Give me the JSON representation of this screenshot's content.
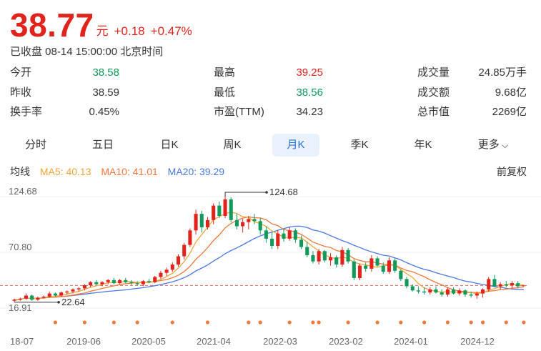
{
  "quote": {
    "price": "38.77",
    "unit": "元",
    "change": "+0.18",
    "change_pct": "+0.47%",
    "status": "已收盘 08-14 15:00:00 北京时间"
  },
  "stats": [
    {
      "label": "今开",
      "value": "38.58",
      "color": "green"
    },
    {
      "label": "最高",
      "value": "39.25",
      "color": "red"
    },
    {
      "label": "成交量",
      "value": "24.85万手",
      "color": "dark"
    },
    {
      "label": "昨收",
      "value": "38.59",
      "color": "dark"
    },
    {
      "label": "最低",
      "value": "38.56",
      "color": "green"
    },
    {
      "label": "成交额",
      "value": "9.68亿",
      "color": "dark"
    },
    {
      "label": "换手率",
      "value": "0.45%",
      "color": "dark"
    },
    {
      "label": "市盈(TTM)",
      "value": "34.23",
      "color": "dark"
    },
    {
      "label": "总市值",
      "value": "2269亿",
      "color": "dark"
    }
  ],
  "tabs": [
    "分时",
    "五日",
    "日K",
    "周K",
    "月K",
    "季K",
    "年K",
    "更多"
  ],
  "active_tab": "月K",
  "ma": {
    "title": "均线",
    "ma5": "MA5: 40.13",
    "ma10": "MA10: 41.01",
    "ma20": "MA20: 39.29",
    "ma5_color": "#f4a53a",
    "ma10_color": "#f0783c",
    "ma20_color": "#4a78e0",
    "adjust": "前复权"
  },
  "colors": {
    "up": "#e0241c",
    "down": "#119a5a"
  },
  "chart_data": {
    "type": "candlestick",
    "y_ticks": [
      "124.68",
      "70.80",
      "16.91"
    ],
    "x_ticks": [
      "18-07",
      "2019-06",
      "2020-05",
      "2021-04",
      "2022-03",
      "2023-02",
      "2024-01",
      "2024-12"
    ],
    "max_label": "124.68",
    "min_label": "22.64",
    "ylim": [
      16.91,
      124.68
    ],
    "current_price": 38.77,
    "candles": [
      [
        24,
        26,
        22.6,
        25
      ],
      [
        25,
        27,
        24,
        26
      ],
      [
        26,
        31,
        25,
        29
      ],
      [
        29,
        30,
        24,
        25
      ],
      [
        25,
        28,
        24,
        27
      ],
      [
        27,
        29,
        26,
        28
      ],
      [
        28,
        33,
        27,
        31
      ],
      [
        31,
        32,
        28,
        29
      ],
      [
        29,
        33,
        28,
        32
      ],
      [
        32,
        34,
        30,
        33
      ],
      [
        33,
        36,
        31,
        35
      ],
      [
        35,
        37,
        33,
        36
      ],
      [
        36,
        40,
        34,
        39
      ],
      [
        39,
        43,
        37,
        42
      ],
      [
        42,
        44,
        39,
        40
      ],
      [
        40,
        43,
        38,
        42
      ],
      [
        42,
        45,
        40,
        44
      ],
      [
        44,
        46,
        40,
        41
      ],
      [
        41,
        45,
        40,
        44
      ],
      [
        44,
        46,
        41,
        42
      ],
      [
        42,
        44,
        39,
        41
      ],
      [
        41,
        43,
        39,
        40
      ],
      [
        40,
        44,
        38,
        43
      ],
      [
        43,
        45,
        41,
        42
      ],
      [
        42,
        48,
        41,
        47
      ],
      [
        47,
        53,
        45,
        51
      ],
      [
        51,
        56,
        48,
        54
      ],
      [
        54,
        61,
        52,
        59
      ],
      [
        59,
        69,
        57,
        67
      ],
      [
        67,
        80,
        64,
        78
      ],
      [
        78,
        94,
        76,
        92
      ],
      [
        92,
        112,
        88,
        108
      ],
      [
        108,
        111,
        90,
        95
      ],
      [
        95,
        105,
        93,
        102
      ],
      [
        102,
        118,
        98,
        116
      ],
      [
        116,
        120,
        104,
        106
      ],
      [
        106,
        124.68,
        104,
        122
      ],
      [
        122,
        124,
        100,
        102
      ],
      [
        102,
        108,
        93,
        96
      ],
      [
        96,
        103,
        90,
        100
      ],
      [
        100,
        106,
        93,
        103
      ],
      [
        103,
        108,
        98,
        101
      ],
      [
        101,
        104,
        88,
        92
      ],
      [
        92,
        96,
        80,
        84
      ],
      [
        84,
        90,
        74,
        77
      ],
      [
        77,
        92,
        74,
        89
      ],
      [
        89,
        94,
        81,
        84
      ],
      [
        84,
        95,
        82,
        92
      ],
      [
        92,
        94,
        80,
        83
      ],
      [
        83,
        87,
        74,
        76
      ],
      [
        76,
        81,
        66,
        68
      ],
      [
        68,
        72,
        60,
        62
      ],
      [
        62,
        74,
        59,
        72
      ],
      [
        72,
        73,
        61,
        63
      ],
      [
        63,
        70,
        58,
        66
      ],
      [
        66,
        68,
        56,
        59
      ],
      [
        59,
        76,
        57,
        73
      ],
      [
        73,
        75,
        60,
        62
      ],
      [
        62,
        64,
        44,
        46
      ],
      [
        46,
        60,
        44,
        58
      ],
      [
        58,
        61,
        52,
        55
      ],
      [
        55,
        68,
        52,
        65
      ],
      [
        65,
        67,
        57,
        58
      ],
      [
        58,
        61,
        50,
        52
      ],
      [
        52,
        66,
        50,
        63
      ],
      [
        63,
        65,
        51,
        53
      ],
      [
        53,
        54,
        43,
        45
      ],
      [
        45,
        47,
        36,
        38
      ],
      [
        38,
        40,
        33,
        34
      ],
      [
        34,
        38,
        31,
        33
      ],
      [
        33,
        37,
        30,
        32
      ],
      [
        32,
        37,
        30,
        35
      ],
      [
        35,
        38,
        31,
        32
      ],
      [
        32,
        35,
        28,
        30
      ],
      [
        30,
        37,
        28,
        35
      ],
      [
        35,
        37,
        30,
        31
      ],
      [
        31,
        36,
        29,
        34
      ],
      [
        34,
        35,
        28,
        30
      ],
      [
        30,
        33,
        27,
        29
      ],
      [
        29,
        33,
        26,
        31
      ],
      [
        31,
        36,
        27,
        35
      ],
      [
        35,
        47,
        33,
        45
      ],
      [
        45,
        49,
        37,
        38
      ],
      [
        38,
        42,
        35,
        40
      ],
      [
        40,
        43,
        37,
        39
      ],
      [
        39,
        43,
        36,
        41
      ],
      [
        41,
        43,
        36,
        38
      ],
      [
        38.58,
        39.25,
        38.56,
        38.77
      ]
    ]
  }
}
